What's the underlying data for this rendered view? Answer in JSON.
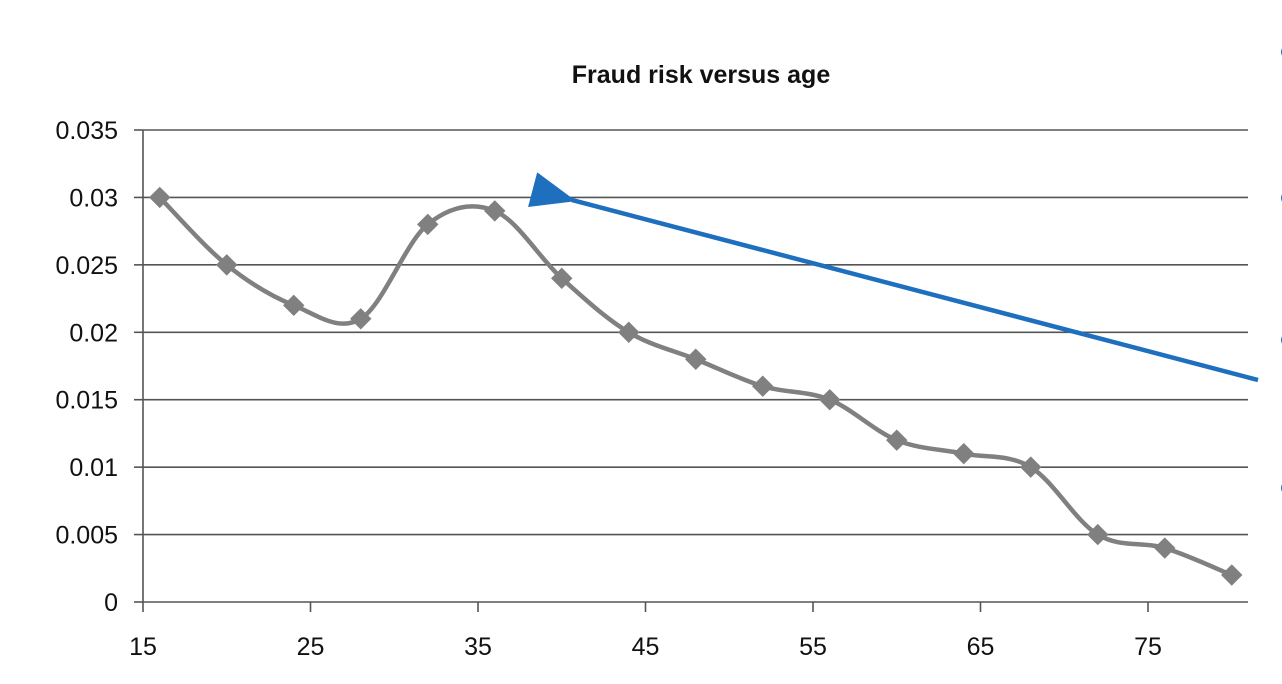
{
  "chart_data": {
    "type": "line",
    "title": "Fraud risk versus age",
    "xlabel": "",
    "ylabel": "",
    "xlim": [
      15,
      81
    ],
    "ylim": [
      0,
      0.035
    ],
    "grid": true,
    "legend": "none",
    "smooth": true,
    "x_ticks": [
      "15",
      "25",
      "35",
      "45",
      "55",
      "65",
      "75"
    ],
    "y_ticks": [
      "0",
      "0.005",
      "0.01",
      "0.015",
      "0.02",
      "0.025",
      "0.03",
      "0.035"
    ],
    "series": [
      {
        "marker": "diamond",
        "color": "#808080",
        "x": [
          16,
          20,
          24,
          28,
          32,
          36,
          40,
          44,
          48,
          52,
          56,
          60,
          64,
          68,
          72,
          76,
          80
        ],
        "y": [
          0.03,
          0.025,
          0.022,
          0.021,
          0.028,
          0.029,
          0.024,
          0.02,
          0.018,
          0.016,
          0.015,
          0.012,
          0.011,
          0.01,
          0.005,
          0.004,
          0.002
        ]
      }
    ],
    "annotations": [
      {
        "type": "arrow",
        "color": "#1f6fbf",
        "points_to": {
          "x": 40,
          "y": 0.03
        }
      }
    ]
  }
}
